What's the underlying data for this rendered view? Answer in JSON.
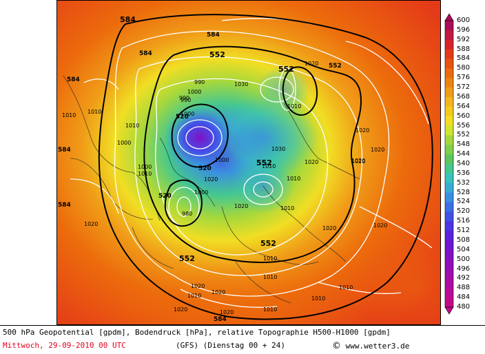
{
  "map": {
    "geopotential_labels": [
      "584",
      "584",
      "584",
      "584",
      "584",
      "584",
      "552",
      "552",
      "552",
      "552",
      "552",
      "552",
      "520",
      "520",
      "520",
      "584"
    ],
    "pressure_labels": [
      "1010",
      "1010",
      "1010",
      "1000",
      "1000",
      "1000",
      "990",
      "990",
      "980",
      "1010",
      "1020",
      "1020",
      "1020",
      "1020",
      "1020",
      "1020",
      "1030",
      "1030",
      "1010",
      "1010",
      "1010",
      "1010",
      "1020",
      "1020",
      "1020",
      "1010",
      "1010",
      "1020",
      "1020",
      "1010",
      "1010",
      "1020",
      "1020",
      "1020",
      "1010",
      "1010",
      "1000",
      "1000",
      "1000",
      "990",
      "1010"
    ]
  },
  "colorbar": {
    "labels": [
      "600",
      "596",
      "592",
      "588",
      "584",
      "580",
      "576",
      "572",
      "568",
      "564",
      "560",
      "556",
      "552",
      "548",
      "544",
      "540",
      "536",
      "532",
      "528",
      "524",
      "520",
      "516",
      "512",
      "508",
      "504",
      "500",
      "496",
      "492",
      "488",
      "484",
      "480"
    ],
    "colors": [
      "#ad0a57",
      "#c31840",
      "#d9222a",
      "#e43a18",
      "#e85310",
      "#ec6b0c",
      "#ee8410",
      "#f09c18",
      "#f4b520",
      "#f4cb1c",
      "#f1de24",
      "#d2e430",
      "#a6d83c",
      "#7fd04a",
      "#5cc65e",
      "#46c78f",
      "#3ac2be",
      "#3aacd4",
      "#3a8fe0",
      "#3c6fe6",
      "#4250e8",
      "#4a35e4",
      "#5a22dc",
      "#6c16d2",
      "#8012c6",
      "#920eba",
      "#a00cae",
      "#ad0ba2",
      "#b90a96",
      "#c40a8a"
    ]
  },
  "footer": {
    "title": "500 hPa Geopotential [gpdm], Bodendruck [hPa], relative Topographie H500-H1000 [gpdm]",
    "date": "Mittwoch, 29-09-2010  00 UTC",
    "model": "(GFS)  (Dienstag 00 + 24)",
    "copyright_symbol": "©",
    "site": "www.wetter3.de"
  }
}
